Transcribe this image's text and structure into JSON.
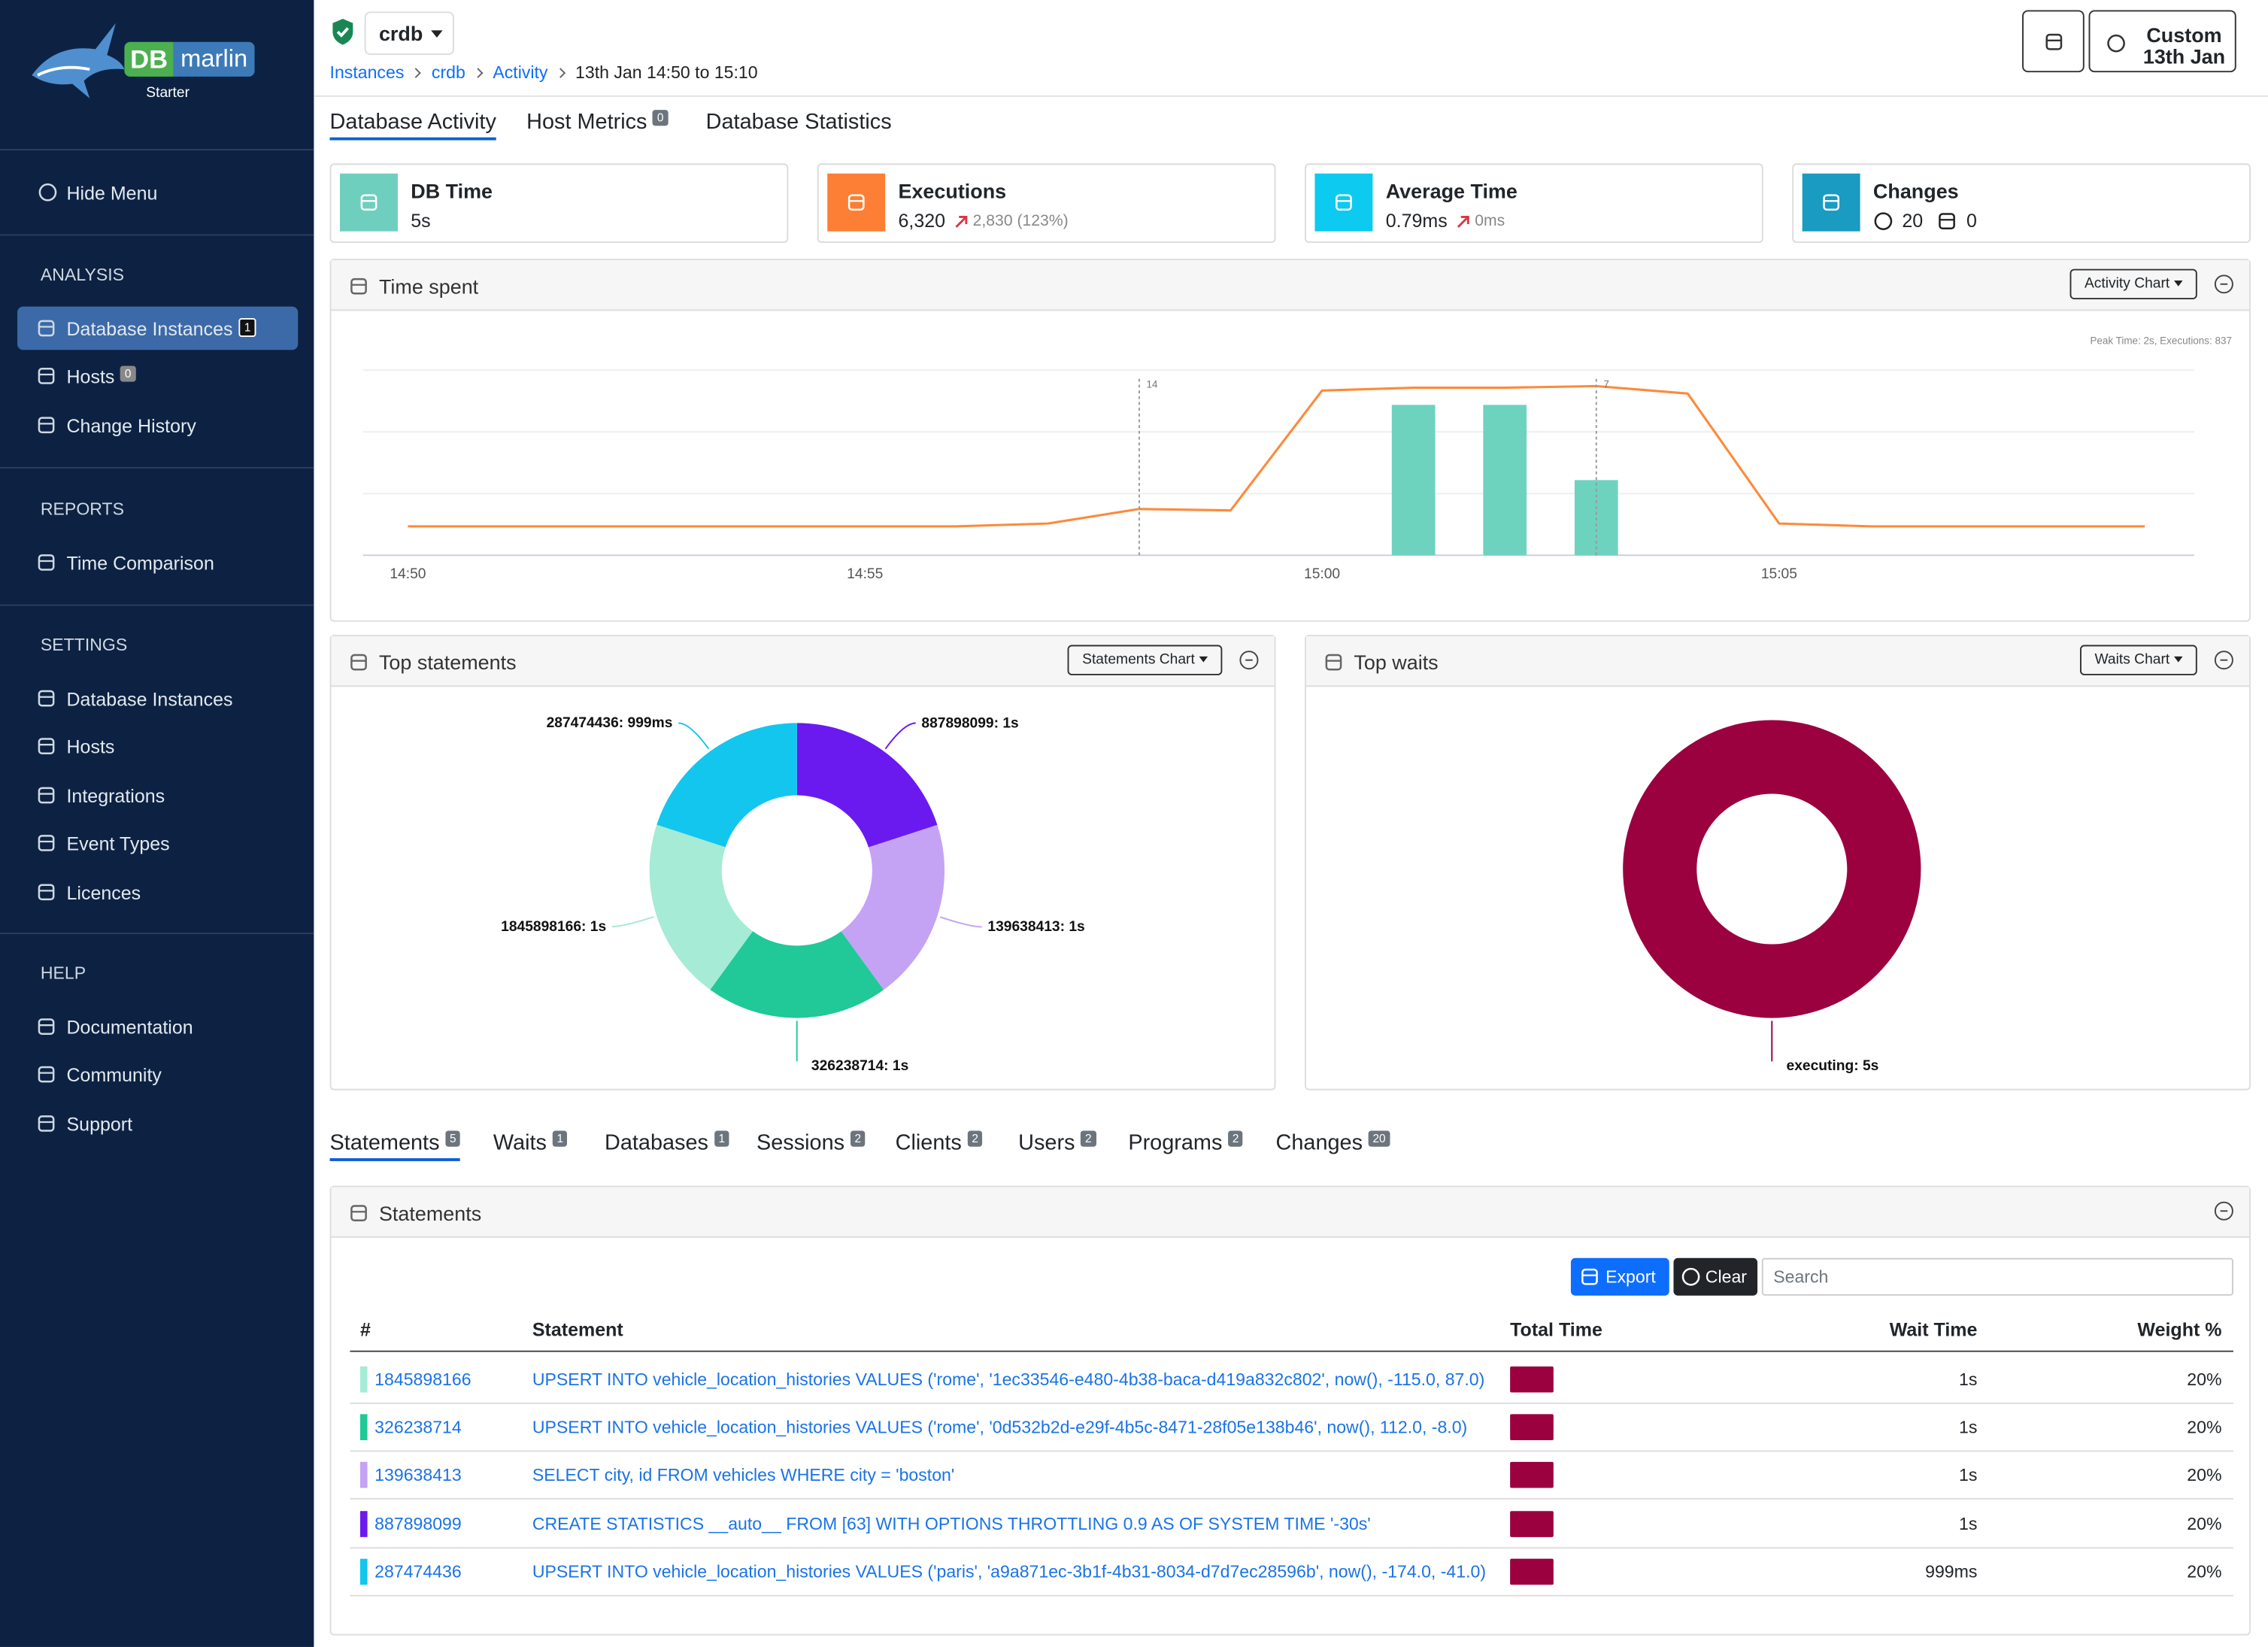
{
  "sidebar": {
    "brand": "DB",
    "brand_name": "marlin",
    "edition": "Starter",
    "hide_menu": "Hide Menu",
    "sections": [
      {
        "title": "ANALYSIS",
        "items": [
          {
            "label": "Database Instances",
            "badge": 1,
            "active": true
          },
          {
            "label": "Hosts",
            "badge": 0
          },
          {
            "label": "Change History"
          }
        ]
      },
      {
        "title": "REPORTS",
        "items": [
          {
            "label": "Time Comparison"
          }
        ]
      },
      {
        "title": "SETTINGS",
        "items": [
          {
            "label": "Database Instances"
          },
          {
            "label": "Hosts"
          },
          {
            "label": "Integrations"
          },
          {
            "label": "Event Types"
          },
          {
            "label": "Licences"
          }
        ]
      },
      {
        "title": "HELP",
        "items": [
          {
            "label": "Documentation"
          },
          {
            "label": "Community"
          },
          {
            "label": "Support"
          }
        ]
      }
    ]
  },
  "header": {
    "instance": "crdb",
    "breadcrumbs": [
      "Instances",
      "crdb",
      "Activity"
    ],
    "range": "13th Jan 14:50 to 15:10",
    "time_button": [
      "Custom",
      "13th Jan"
    ]
  },
  "tabs": [
    {
      "label": "Database Activity",
      "active": true
    },
    {
      "label": "Host Metrics",
      "badge": 0
    },
    {
      "label": "Database Statistics"
    }
  ],
  "kpis": [
    {
      "label": "DB Time",
      "value": "5s",
      "color": "#6fcfbf"
    },
    {
      "label": "Executions",
      "value": "6,320",
      "change": "2,830 (123%)",
      "color": "#fd7e35"
    },
    {
      "label": "Average Time",
      "value": "0.79ms",
      "change": "0ms",
      "color": "#0dcaf0"
    },
    {
      "label": "Changes",
      "value": 20,
      "secondary": 0,
      "color": "#1a9bc2"
    }
  ],
  "time_spent": {
    "title": "Time spent",
    "button": "Activity Chart",
    "note": "Peak Time: 2s, Executions: 837",
    "chart": {
      "type": "combo",
      "xticks": [
        "14:50",
        "14:55",
        "15:00",
        "15:05"
      ],
      "markers": [
        {
          "x": "14:58",
          "label": "14"
        },
        {
          "x": "15:03",
          "label": "7"
        }
      ],
      "series": [
        {
          "type": "line",
          "color": "#fd8a3a",
          "x": [
            "14:50",
            "14:51",
            "14:52",
            "14:53",
            "14:54",
            "14:55",
            "14:56",
            "14:57",
            "14:58",
            "14:59",
            "15:00",
            "15:01",
            "15:02",
            "15:03",
            "15:04",
            "15:05",
            "15:06",
            "15:07",
            "15:08",
            "15:09"
          ],
          "values": [
            143,
            143,
            143,
            143,
            143,
            143,
            143,
            157,
            229,
            222,
            815,
            829,
            829,
            837,
            800,
            157,
            143,
            143,
            143,
            143
          ]
        },
        {
          "type": "bar",
          "color": "#6dd3bf",
          "x": [
            "15:01",
            "15:02",
            "15:03"
          ],
          "values": [
            2,
            2,
            1
          ]
        }
      ]
    }
  },
  "top_statements": {
    "title": "Top statements",
    "button": "Statements Chart",
    "chart": {
      "type": "pie",
      "categories": [
        "887898099: 1s",
        "139638413: 1s",
        "326238714: 1s",
        "1845898166: 1s",
        "287474436: 999ms"
      ],
      "values": [
        1,
        1,
        1,
        1,
        0.999
      ],
      "colors": [
        "#6a1aef",
        "#c4a3f5",
        "#20c997",
        "#a6ebd6",
        "#13c6ee"
      ]
    }
  },
  "top_waits": {
    "title": "Top waits",
    "button": "Waits Chart",
    "chart": {
      "type": "pie",
      "categories": [
        "executing: 5s"
      ],
      "values": [
        5
      ],
      "colors": [
        "#9b003f"
      ]
    }
  },
  "bottom_tabs": [
    {
      "label": "Statements",
      "badge": 5,
      "active": true
    },
    {
      "label": "Waits",
      "badge": 1
    },
    {
      "label": "Databases",
      "badge": 1
    },
    {
      "label": "Sessions",
      "badge": 2
    },
    {
      "label": "Clients",
      "badge": 2
    },
    {
      "label": "Users",
      "badge": 2
    },
    {
      "label": "Programs",
      "badge": 2
    },
    {
      "label": "Changes",
      "badge": 20
    }
  ],
  "statements": {
    "title": "Statements",
    "export": "Export",
    "clear": "Clear",
    "search": "Search",
    "columns": [
      "#",
      "Statement",
      "Total Time",
      "Wait Time",
      "Weight %"
    ],
    "total_time_color": "#9b003f",
    "rows": [
      {
        "id": "1845898166",
        "color": "#a6ebd6",
        "statement": "UPSERT INTO vehicle_location_histories VALUES ('rome', '1ec33546-e480-4b38-baca-d419a832c802', now(), -115.0, 87.0)",
        "wait": "1s",
        "weight": "20%"
      },
      {
        "id": "326238714",
        "color": "#20c997",
        "statement": "UPSERT INTO vehicle_location_histories VALUES ('rome', '0d532b2d-e29f-4b5c-8471-28f05e138b46', now(), 112.0, -8.0)",
        "wait": "1s",
        "weight": "20%"
      },
      {
        "id": "139638413",
        "color": "#c4a3f5",
        "statement": "SELECT city, id FROM vehicles WHERE city = 'boston'",
        "wait": "1s",
        "weight": "20%"
      },
      {
        "id": "887898099",
        "color": "#6a1aef",
        "statement": "CREATE STATISTICS __auto__ FROM [63] WITH OPTIONS THROTTLING 0.9 AS OF SYSTEM TIME '-30s'",
        "wait": "1s",
        "weight": "20%"
      },
      {
        "id": "287474436",
        "color": "#13c6ee",
        "statement": "UPSERT INTO vehicle_location_histories VALUES ('paris', 'a9a871ec-3b1f-4b31-8034-d7d7ec28596b', now(), -174.0, -41.0)",
        "wait": "999ms",
        "weight": "20%"
      }
    ]
  }
}
